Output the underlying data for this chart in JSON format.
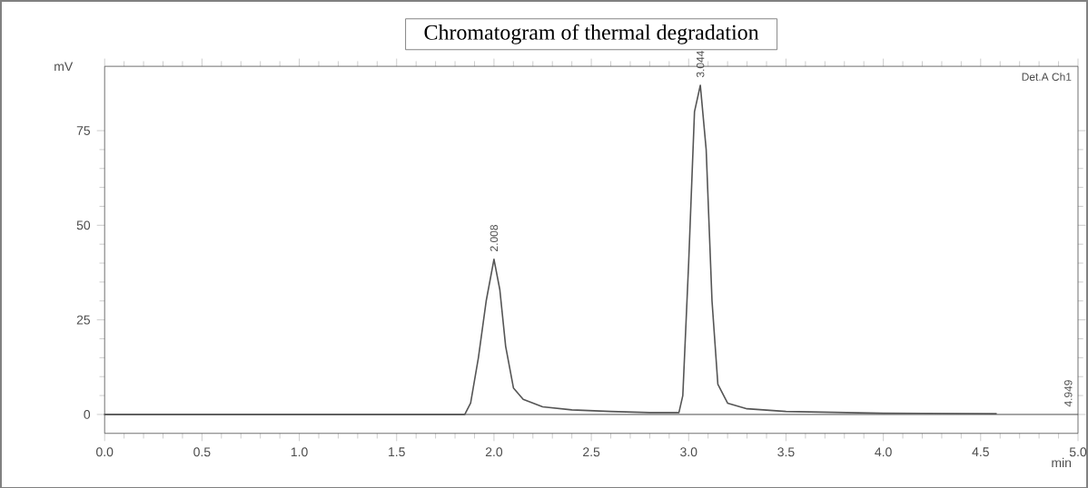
{
  "chart_data": {
    "type": "line",
    "title": "Chromatogram of thermal degradation",
    "xlabel": "min",
    "ylabel": "mV",
    "x": [
      0,
      1.85,
      1.88,
      1.92,
      1.96,
      2.0,
      2.03,
      2.06,
      2.1,
      2.15,
      2.25,
      2.4,
      2.6,
      2.8,
      2.95,
      2.97,
      3.0,
      3.03,
      3.06,
      3.09,
      3.12,
      3.15,
      3.2,
      3.3,
      3.5,
      4.0,
      4.58
    ],
    "series": [
      {
        "color": "#555555",
        "values": [
          0,
          0,
          3,
          15,
          30,
          41,
          33,
          18,
          7,
          4,
          2,
          1.2,
          0.8,
          0.5,
          0.5,
          5,
          40,
          80,
          87,
          70,
          30,
          8,
          3,
          1.5,
          0.8,
          0.3,
          0.2
        ]
      }
    ],
    "xlim": [
      0,
      5
    ],
    "ylim": [
      -5,
      92
    ],
    "xticks": [
      {
        "value": 0,
        "label": "0.0"
      },
      {
        "value": 0.5,
        "label": "0.5"
      },
      {
        "value": 1,
        "label": "1.0"
      },
      {
        "value": 1.5,
        "label": "1.5"
      },
      {
        "value": 2,
        "label": "2.0"
      },
      {
        "value": 2.5,
        "label": "2.5"
      },
      {
        "value": 3,
        "label": "3.0"
      },
      {
        "value": 3.5,
        "label": "3.5"
      },
      {
        "value": 4,
        "label": "4.0"
      },
      {
        "value": 4.5,
        "label": "4.5"
      },
      {
        "value": 5,
        "label": "5.0"
      }
    ],
    "yticks": [
      0,
      25,
      50,
      75
    ],
    "ref_lines": [
      {
        "axis": "y",
        "value": 0
      }
    ],
    "annotations": [
      {
        "text": "2.008",
        "x": 2.0,
        "y": 41
      },
      {
        "text": "3.044",
        "x": 3.06,
        "y": 87
      },
      {
        "text": "4.949",
        "x": 4.95,
        "y": 0
      },
      "Det.A Ch1"
    ],
    "grid": false,
    "legend": false,
    "marker": "none",
    "line_style": "solid"
  }
}
